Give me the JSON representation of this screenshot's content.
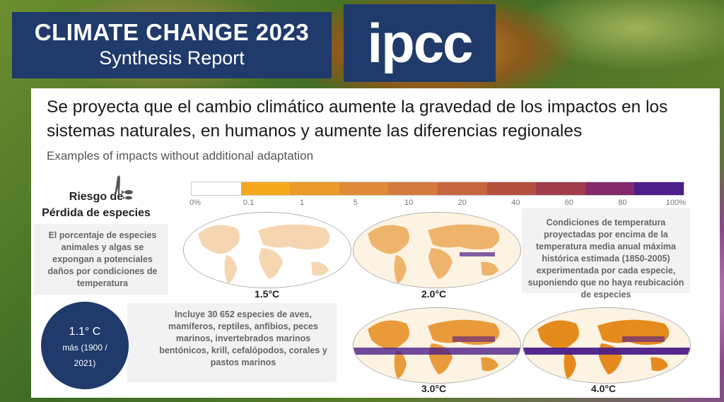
{
  "header": {
    "title_line1": "CLIMATE CHANGE 2023",
    "title_line2": "Synthesis Report",
    "logo_text": "ipcc"
  },
  "slide": {
    "headline": "Se proyecta que el cambio climático aumente la gravedad de los impactos en los sistemas naturales, en humanos y aumente las diferencias regionales",
    "subtitle": "Examples of impacts without additional adaptation",
    "risk_title_line1": "Riesgo de",
    "risk_title_line2": "Pérdida de especies",
    "risk_icon": "giraffe-fish-icon",
    "left_description": "El porcentaje de especies animales y algas se expongan a potenciales daños por condiciones de temperatura",
    "right_description": "Condiciones de temperatura proyectadas por encima de la temperatura media anual máxima histórica estimada (1850-2005) experimentada por cada especie, suponiendo que no haya reubicación de especies",
    "species_note": "Incluye 30 652 especies de aves, mamíferos, reptiles, anfibios, peces marinos, invertebrados marinos bentónicos, krill, cefalópodos, corales y pastos marinos",
    "scale_labels": [
      "0%",
      "0.1",
      "1",
      "5",
      "10",
      "20",
      "40",
      "60",
      "80",
      "100%"
    ],
    "scale_colors": [
      "#ffffff",
      "#f6a81c",
      "#ec9b2b",
      "#df8a36",
      "#d57a3e",
      "#c8663f",
      "#b5503f",
      "#a13d4c",
      "#842a6a",
      "#4b1e8a"
    ],
    "maps": [
      {
        "label": "1.5°C",
        "level": "low"
      },
      {
        "label": "2.0°C",
        "level": "moderate"
      },
      {
        "label": "3.0°C",
        "level": "high"
      },
      {
        "label": "4.0°C",
        "level": "very-high"
      }
    ],
    "warming_badge": {
      "value": "1.1° C",
      "line2": "más (1900 /",
      "line3": "2021)"
    }
  }
}
